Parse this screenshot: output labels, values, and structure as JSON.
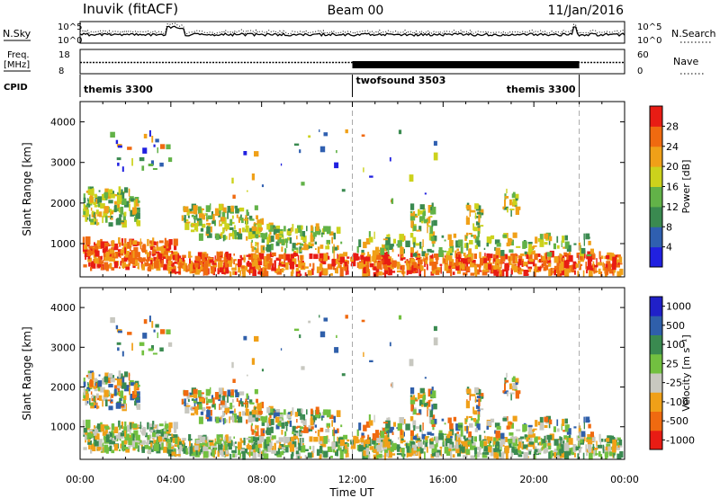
{
  "header": {
    "station": "Inuvik (fitACF)",
    "beam": "Beam 00",
    "date": "11/Jan/2016"
  },
  "noise_panel": {
    "left_label": "N.Sky",
    "left_ticks": [
      "10^5",
      "10^0"
    ],
    "right_label": "N.Search",
    "right_ticks": [
      "10^5",
      "10^0"
    ]
  },
  "freq_panel": {
    "left_label_top": "Freq.",
    "left_label_bottom": "[MHz]",
    "left_ticks": [
      "18",
      "8"
    ],
    "right_label": "Nave",
    "right_ticks": [
      "60",
      "0"
    ]
  },
  "cpid_panel": {
    "label": "CPID",
    "segments": [
      {
        "name": "themis 3300",
        "start_h": 0,
        "end_h": 12
      },
      {
        "name": "twofsound 3503",
        "start_h": 12,
        "end_h": 22
      },
      {
        "name": "themis 3300",
        "start_h": 22,
        "end_h": 24
      }
    ]
  },
  "colors": {
    "power": [
      "#2020e0",
      "#2f5fb0",
      "#3a8a50",
      "#62b248",
      "#ccd21c",
      "#f0a018",
      "#f06a10",
      "#e81c14"
    ],
    "velocity": [
      "#2020c8",
      "#2f5faa",
      "#3a8a50",
      "#72c040",
      "#c8c8c0",
      "#f0a018",
      "#f06a10",
      "#e81c14"
    ]
  },
  "chart_data": [
    {
      "type": "heatmap",
      "name": "power",
      "ylabel": "Slant Range [km]",
      "xlim": [
        0,
        24
      ],
      "ylim": [
        180,
        4500
      ],
      "yticks": [
        "1000",
        "2000",
        "3000",
        "4000"
      ],
      "colorbar": {
        "label": "Power [dB]",
        "range": [
          0,
          32
        ],
        "ticks": [
          "4",
          "8",
          "12",
          "16",
          "20",
          "24",
          "28"
        ]
      }
    },
    {
      "type": "heatmap",
      "name": "velocity",
      "ylabel": "Slant Range [km]",
      "xlabel": "Time UT",
      "xlim": [
        0,
        24
      ],
      "ylim": [
        180,
        4500
      ],
      "xticks": [
        "00:00",
        "04:00",
        "08:00",
        "12:00",
        "16:00",
        "20:00",
        "00:00"
      ],
      "yticks": [
        "1000",
        "2000",
        "3000",
        "4000"
      ],
      "colorbar": {
        "label": "Velocity [m s⁻¹]",
        "ticks": [
          "1000",
          "500",
          "100",
          "25",
          "-25",
          "-100",
          "-500",
          "-1000"
        ]
      }
    }
  ]
}
